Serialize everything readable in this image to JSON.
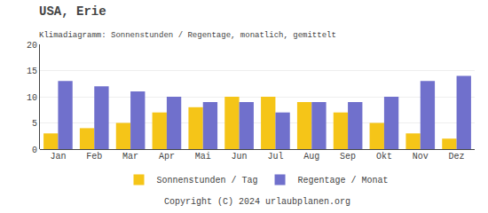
{
  "chart_data": {
    "type": "bar",
    "title": "USA, Erie",
    "subtitle": "Klimadiagramm: Sonnenstunden / Regentage, monatlich, gemittelt",
    "categories": [
      "Jan",
      "Feb",
      "Mar",
      "Apr",
      "Mai",
      "Jun",
      "Jul",
      "Aug",
      "Sep",
      "Okt",
      "Nov",
      "Dez"
    ],
    "series": [
      {
        "name": "Sonnenstunden / Tag",
        "color": "#f5c518",
        "values": [
          3,
          4,
          5,
          7,
          8,
          10,
          10,
          9,
          7,
          5,
          3,
          2
        ]
      },
      {
        "name": "Regentage / Monat",
        "color": "#7070cc",
        "values": [
          13,
          12,
          11,
          10,
          9,
          9,
          7,
          9,
          9,
          10,
          13,
          14
        ]
      }
    ],
    "ylim": [
      0,
      20
    ],
    "yticks": [
      0,
      5,
      10,
      15,
      20
    ],
    "grid": true,
    "legend": "bottom",
    "annotations": [
      "Copyright (C) 2024 urlaubplanen.org"
    ]
  }
}
